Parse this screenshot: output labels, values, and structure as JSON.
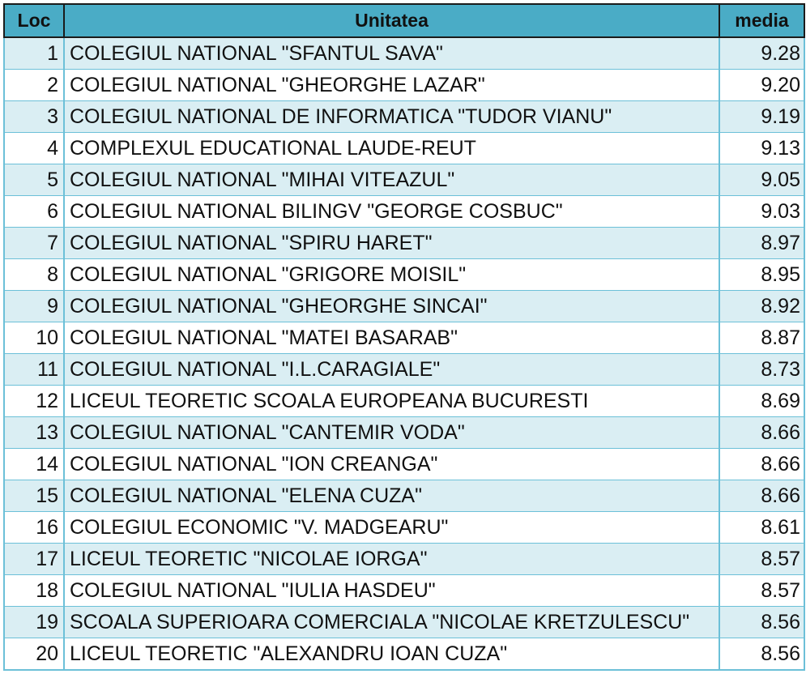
{
  "table": {
    "headers": {
      "loc": "Loc",
      "unit": "Unitatea",
      "media": "media"
    },
    "rows": [
      {
        "loc": "1",
        "unit": "COLEGIUL NATIONAL \"SFANTUL SAVA\"",
        "media": "9.28"
      },
      {
        "loc": "2",
        "unit": "COLEGIUL NATIONAL \"GHEORGHE LAZAR\"",
        "media": "9.20"
      },
      {
        "loc": "3",
        "unit": "COLEGIUL NATIONAL DE INFORMATICA \"TUDOR VIANU\"",
        "media": "9.19"
      },
      {
        "loc": "4",
        "unit": "COMPLEXUL EDUCATIONAL LAUDE-REUT",
        "media": "9.13"
      },
      {
        "loc": "5",
        "unit": "COLEGIUL NATIONAL \"MIHAI VITEAZUL\"",
        "media": "9.05"
      },
      {
        "loc": "6",
        "unit": "COLEGIUL NATIONAL BILINGV \"GEORGE COSBUC\"",
        "media": "9.03"
      },
      {
        "loc": "7",
        "unit": "COLEGIUL NATIONAL \"SPIRU HARET\"",
        "media": "8.97"
      },
      {
        "loc": "8",
        "unit": "COLEGIUL NATIONAL \"GRIGORE MOISIL\"",
        "media": "8.95"
      },
      {
        "loc": "9",
        "unit": "COLEGIUL NATIONAL \"GHEORGHE SINCAI\"",
        "media": "8.92"
      },
      {
        "loc": "10",
        "unit": "COLEGIUL NATIONAL \"MATEI BASARAB\"",
        "media": "8.87"
      },
      {
        "loc": "11",
        "unit": "COLEGIUL NATIONAL \"I.L.CARAGIALE\"",
        "media": "8.73"
      },
      {
        "loc": "12",
        "unit": "LICEUL TEORETIC SCOALA EUROPEANA BUCURESTI",
        "media": "8.69"
      },
      {
        "loc": "13",
        "unit": "COLEGIUL NATIONAL \"CANTEMIR VODA\"",
        "media": "8.66"
      },
      {
        "loc": "14",
        "unit": "COLEGIUL NATIONAL \"ION CREANGA\"",
        "media": "8.66"
      },
      {
        "loc": "15",
        "unit": "COLEGIUL NATIONAL \"ELENA CUZA\"",
        "media": "8.66"
      },
      {
        "loc": "16",
        "unit": "COLEGIUL ECONOMIC \"V. MADGEARU\"",
        "media": "8.61"
      },
      {
        "loc": "17",
        "unit": "LICEUL TEORETIC \"NICOLAE IORGA\"",
        "media": "8.57"
      },
      {
        "loc": "18",
        "unit": "COLEGIUL NATIONAL \"IULIA HASDEU\"",
        "media": "8.57"
      },
      {
        "loc": "19",
        "unit": "SCOALA SUPERIOARA COMERCIALA \"NICOLAE KRETZULESCU\"",
        "media": "8.56"
      },
      {
        "loc": "20",
        "unit": "LICEUL TEORETIC \"ALEXANDRU IOAN CUZA\"",
        "media": "8.56"
      }
    ]
  },
  "colors": {
    "header_bg": "#4aacc6",
    "band_bg": "#daeef3",
    "grid_line": "#6cc0d8"
  }
}
